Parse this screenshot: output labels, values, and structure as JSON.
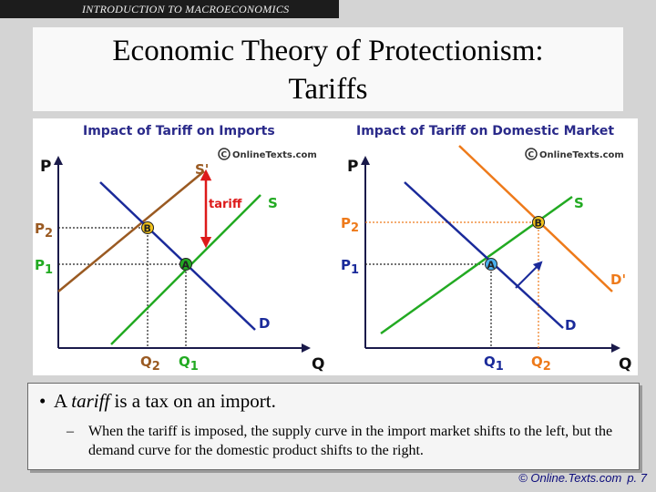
{
  "banner": {
    "text": "INTRODUCTION TO MACROECONOMICS"
  },
  "title": {
    "line1": "Economic Theory of Protectionism:",
    "line2": "Tariffs"
  },
  "diagrams": [
    {
      "heading": "Impact of Tariff on Imports",
      "watermark": "OnlineTexts.com",
      "p_axis": "P",
      "q_axis": "Q",
      "curves": {
        "supply": "S",
        "supply_shifted": "S'",
        "demand": "D"
      },
      "price_labels": [
        "P",
        "2",
        "P",
        "1"
      ],
      "quantity_labels": [
        "Q",
        "2",
        "Q",
        "1"
      ],
      "points": {
        "a": "A",
        "b": "B"
      },
      "shift_label": "tariff"
    },
    {
      "heading": "Impact of Tariff on Domestic Market",
      "watermark": "OnlineTexts.com",
      "p_axis": "P",
      "q_axis": "Q",
      "curves": {
        "supply": "S",
        "demand": "D",
        "demand_shifted": "D'"
      },
      "price_labels": [
        "P",
        "2",
        "P",
        "1"
      ],
      "quantity_labels": [
        "Q",
        "1",
        "Q",
        "2"
      ],
      "points": {
        "a": "A",
        "b": "B"
      }
    }
  ],
  "bullet": {
    "prefix": "A ",
    "term": "tariff",
    "suffix": " is a tax on an import."
  },
  "sub_bullet": "When the tariff is imposed, the supply curve in the import market shifts to the left, but the demand curve for the domestic product shifts to the right.",
  "footer": {
    "copyright": "© Online.Texts.com",
    "page": "p. 7"
  },
  "colors": {
    "heading": "#2a2a8a",
    "supply": "#22aa22",
    "supply_shifted": "#9a5a22",
    "demand": "#1a2a9a",
    "demand_shifted": "#ee7a1a",
    "tariff_arrow": "#dd1a1a",
    "axis": "#1a1a4a"
  }
}
